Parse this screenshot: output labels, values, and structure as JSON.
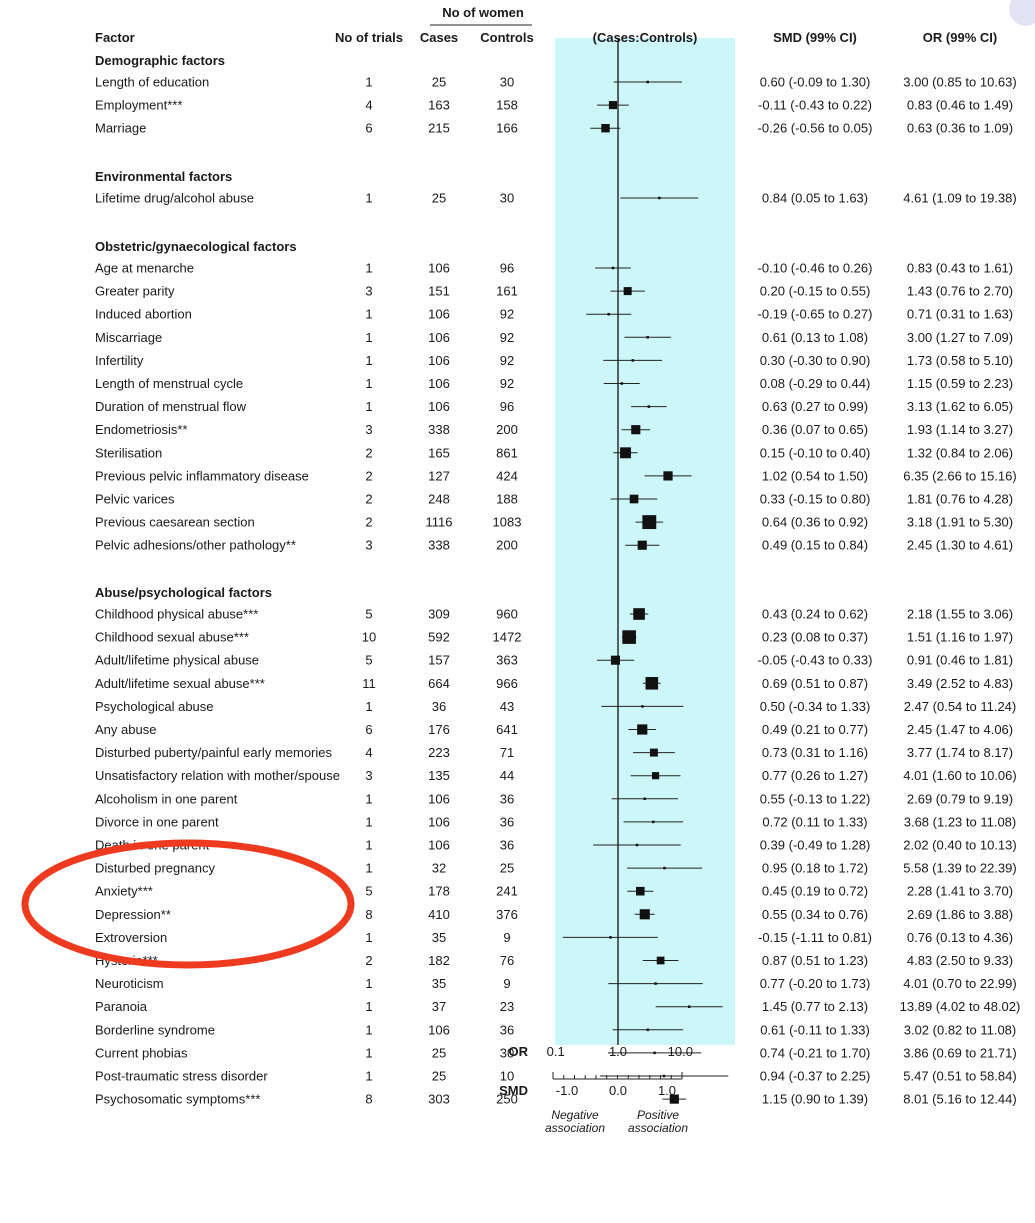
{
  "header": {
    "no_of_women": "No of women",
    "factor": "Factor",
    "no_of_trials": "No of trials",
    "cases": "Cases",
    "controls": "Controls",
    "plot_header": "(Cases:Controls)",
    "smd_ci": "SMD (99% CI)",
    "or_ci": "OR (99% CI)"
  },
  "axes": {
    "or_label": "OR",
    "or_ticks": [
      "0.1",
      "1.0",
      "10.0"
    ],
    "smd_label": "SMD",
    "smd_ticks": [
      "-1.0",
      "0.0",
      "1.0"
    ],
    "negative_line1": "Negative",
    "negative_line2": "association",
    "positive_line1": "Positive",
    "positive_line2": "association"
  },
  "colors": {
    "panel_background": "#cdf6f8",
    "annotation_ellipse": "#ee3a1e",
    "marker": "#111111"
  },
  "annotation": {
    "shape": "ellipse",
    "highlighted_rows": [
      "Disturbed pregnancy",
      "Anxiety***",
      "Depression**",
      "Extroversion"
    ]
  },
  "chart_data": {
    "type": "forest",
    "x_scale": "log (OR)",
    "xlim": [
      0.1,
      10
    ],
    "reference_line": 1.0,
    "groups": [
      {
        "title": "Demographic factors",
        "rows": [
          {
            "factor": "Length of education",
            "trials": "1",
            "cases": "25",
            "controls": "30",
            "smd": "0.60 (-0.09 to 1.30)",
            "or": "3.00 (0.85 to 10.63)",
            "or_est": 3.0,
            "or_lo": 0.85,
            "or_hi": 10.63
          },
          {
            "factor": "Employment***",
            "trials": "4",
            "cases": "163",
            "controls": "158",
            "smd": "-0.11 (-0.43 to 0.22)",
            "or": "0.83 (0.46 to 1.49)",
            "or_est": 0.83,
            "or_lo": 0.46,
            "or_hi": 1.49
          },
          {
            "factor": "Marriage",
            "trials": "6",
            "cases": "215",
            "controls": "166",
            "smd": "-0.26 (-0.56 to 0.05)",
            "or": "0.63 (0.36 to 1.09)",
            "or_est": 0.63,
            "or_lo": 0.36,
            "or_hi": 1.09
          }
        ]
      },
      {
        "title": "Environmental factors",
        "rows": [
          {
            "factor": "Lifetime drug/alcohol abuse",
            "trials": "1",
            "cases": "25",
            "controls": "30",
            "smd": "0.84 (0.05 to 1.63)",
            "or": "4.61 (1.09 to 19.38)",
            "or_est": 4.61,
            "or_lo": 1.09,
            "or_hi": 19.38
          }
        ]
      },
      {
        "title": "Obstetric/gynaecological factors",
        "rows": [
          {
            "factor": "Age at menarche",
            "trials": "1",
            "cases": "106",
            "controls": "96",
            "smd": "-0.10 (-0.46 to 0.26)",
            "or": "0.83 (0.43 to 1.61)",
            "or_est": 0.83,
            "or_lo": 0.43,
            "or_hi": 1.61
          },
          {
            "factor": "Greater parity",
            "trials": "3",
            "cases": "151",
            "controls": "161",
            "smd": "0.20 (-0.15 to 0.55)",
            "or": "1.43 (0.76 to 2.70)",
            "or_est": 1.43,
            "or_lo": 0.76,
            "or_hi": 2.7
          },
          {
            "factor": "Induced abortion",
            "trials": "1",
            "cases": "106",
            "controls": "92",
            "smd": "-0.19 (-0.65 to 0.27)",
            "or": "0.71 (0.31 to 1.63)",
            "or_est": 0.71,
            "or_lo": 0.31,
            "or_hi": 1.63
          },
          {
            "factor": "Miscarriage",
            "trials": "1",
            "cases": "106",
            "controls": "92",
            "smd": "0.61 (0.13 to 1.08)",
            "or": "3.00 (1.27 to 7.09)",
            "or_est": 3.0,
            "or_lo": 1.27,
            "or_hi": 7.09
          },
          {
            "factor": "Infertility",
            "trials": "1",
            "cases": "106",
            "controls": "92",
            "smd": "0.30 (-0.30 to 0.90)",
            "or": "1.73 (0.58 to 5.10)",
            "or_est": 1.73,
            "or_lo": 0.58,
            "or_hi": 5.1
          },
          {
            "factor": "Length of menstrual cycle",
            "trials": "1",
            "cases": "106",
            "controls": "92",
            "smd": "0.08 (-0.29 to 0.44)",
            "or": "1.15 (0.59 to 2.23)",
            "or_est": 1.15,
            "or_lo": 0.59,
            "or_hi": 2.23
          },
          {
            "factor": "Duration of menstrual flow",
            "trials": "1",
            "cases": "106",
            "controls": "96",
            "smd": "0.63 (0.27 to 0.99)",
            "or": "3.13 (1.62 to 6.05)",
            "or_est": 3.13,
            "or_lo": 1.62,
            "or_hi": 6.05
          },
          {
            "factor": "Endometriosis**",
            "trials": "3",
            "cases": "338",
            "controls": "200",
            "smd": "0.36 (0.07 to 0.65)",
            "or": "1.93 (1.14 to 3.27)",
            "or_est": 1.93,
            "or_lo": 1.14,
            "or_hi": 3.27
          },
          {
            "factor": "Sterilisation",
            "trials": "2",
            "cases": "165",
            "controls": "861",
            "smd": "0.15 (-0.10 to 0.40)",
            "or": "1.32 (0.84 to 2.06)",
            "or_est": 1.32,
            "or_lo": 0.84,
            "or_hi": 2.06
          },
          {
            "factor": "Previous pelvic inflammatory disease",
            "trials": "2",
            "cases": "127",
            "controls": "424",
            "smd": "1.02 (0.54 to 1.50)",
            "or": "6.35 (2.66 to 15.16)",
            "or_est": 6.35,
            "or_lo": 2.66,
            "or_hi": 15.16
          },
          {
            "factor": "Pelvic varices",
            "trials": "2",
            "cases": "248",
            "controls": "188",
            "smd": "0.33 (-0.15 to 0.80)",
            "or": "1.81 (0.76 to 4.28)",
            "or_est": 1.81,
            "or_lo": 0.76,
            "or_hi": 4.28
          },
          {
            "factor": "Previous caesarean section",
            "trials": "2",
            "cases": "1116",
            "controls": "1083",
            "smd": "0.64 (0.36 to 0.92)",
            "or": "3.18 (1.91 to 5.30)",
            "or_est": 3.18,
            "or_lo": 1.91,
            "or_hi": 5.3
          },
          {
            "factor": "Pelvic adhesions/other pathology**",
            "trials": "3",
            "cases": "338",
            "controls": "200",
            "smd": "0.49 (0.15 to 0.84)",
            "or": "2.45 (1.30 to 4.61)",
            "or_est": 2.45,
            "or_lo": 1.3,
            "or_hi": 4.61
          }
        ]
      },
      {
        "title": "Abuse/psychological factors",
        "rows": [
          {
            "factor": "Childhood physical abuse***",
            "trials": "5",
            "cases": "309",
            "controls": "960",
            "smd": "0.43 (0.24 to 0.62)",
            "or": "2.18 (1.55 to 3.06)",
            "or_est": 2.18,
            "or_lo": 1.55,
            "or_hi": 3.06
          },
          {
            "factor": "Childhood sexual abuse***",
            "trials": "10",
            "cases": "592",
            "controls": "1472",
            "smd": "0.23 (0.08 to 0.37)",
            "or": "1.51 (1.16 to 1.97)",
            "or_est": 1.51,
            "or_lo": 1.16,
            "or_hi": 1.97
          },
          {
            "factor": "Adult/lifetime physical abuse",
            "trials": "5",
            "cases": "157",
            "controls": "363",
            "smd": "-0.05 (-0.43 to 0.33)",
            "or": "0.91 (0.46 to 1.81)",
            "or_est": 0.91,
            "or_lo": 0.46,
            "or_hi": 1.81
          },
          {
            "factor": "Adult/lifetime sexual abuse***",
            "trials": "11",
            "cases": "664",
            "controls": "966",
            "smd": "0.69 (0.51 to 0.87)",
            "or": "3.49 (2.52 to 4.83)",
            "or_est": 3.49,
            "or_lo": 2.52,
            "or_hi": 4.83
          },
          {
            "factor": "Psychological abuse",
            "trials": "1",
            "cases": "36",
            "controls": "43",
            "smd": "0.50 (-0.34 to 1.33)",
            "or": "2.47 (0.54 to 11.24)",
            "or_est": 2.47,
            "or_lo": 0.54,
            "or_hi": 11.24
          },
          {
            "factor": "Any abuse",
            "trials": "6",
            "cases": "176",
            "controls": "641",
            "smd": "0.49 (0.21 to 0.77)",
            "or": "2.45 (1.47 to 4.06)",
            "or_est": 2.45,
            "or_lo": 1.47,
            "or_hi": 4.06
          },
          {
            "factor": "Disturbed puberty/painful early memories",
            "trials": "4",
            "cases": "223",
            "controls": "71",
            "smd": "0.73 (0.31 to 1.16)",
            "or": "3.77 (1.74 to 8.17)",
            "or_est": 3.77,
            "or_lo": 1.74,
            "or_hi": 8.17
          },
          {
            "factor": "Unsatisfactory relation with mother/spouse",
            "trials": "3",
            "cases": "135",
            "controls": "44",
            "smd": "0.77 (0.26 to 1.27)",
            "or": "4.01 (1.60 to 10.06)",
            "or_est": 4.01,
            "or_lo": 1.6,
            "or_hi": 10.06
          },
          {
            "factor": "Alcoholism in one parent",
            "trials": "1",
            "cases": "106",
            "controls": "36",
            "smd": "0.55 (-0.13 to 1.22)",
            "or": "2.69 (0.79 to 9.19)",
            "or_est": 2.69,
            "or_lo": 0.79,
            "or_hi": 9.19
          },
          {
            "factor": "Divorce in one parent",
            "trials": "1",
            "cases": "106",
            "controls": "36",
            "smd": "0.72 (0.11 to 1.33)",
            "or": "3.68 (1.23 to 11.08)",
            "or_est": 3.68,
            "or_lo": 1.23,
            "or_hi": 11.08
          },
          {
            "factor": "Death in one parent",
            "trials": "1",
            "cases": "106",
            "controls": "36",
            "smd": "0.39 (-0.49 to 1.28)",
            "or": "2.02 (0.40 to 10.13)",
            "or_est": 2.02,
            "or_lo": 0.4,
            "or_hi": 10.13
          },
          {
            "factor": "Disturbed pregnancy",
            "trials": "1",
            "cases": "32",
            "controls": "25",
            "smd": "0.95 (0.18 to 1.72)",
            "or": "5.58 (1.39 to 22.39)",
            "or_est": 5.58,
            "or_lo": 1.39,
            "or_hi": 22.39
          },
          {
            "factor": "Anxiety***",
            "trials": "5",
            "cases": "178",
            "controls": "241",
            "smd": "0.45 (0.19 to 0.72)",
            "or": "2.28 (1.41 to 3.70)",
            "or_est": 2.28,
            "or_lo": 1.41,
            "or_hi": 3.7
          },
          {
            "factor": "Depression**",
            "trials": "8",
            "cases": "410",
            "controls": "376",
            "smd": "0.55 (0.34 to 0.76)",
            "or": "2.69 (1.86 to 3.88)",
            "or_est": 2.69,
            "or_lo": 1.86,
            "or_hi": 3.88
          },
          {
            "factor": "Extroversion",
            "trials": "1",
            "cases": "35",
            "controls": "9",
            "smd": "-0.15 (-1.11 to 0.81)",
            "or": "0.76 (0.13 to 4.36)",
            "or_est": 0.76,
            "or_lo": 0.13,
            "or_hi": 4.36
          },
          {
            "factor": "Hysteria***",
            "trials": "2",
            "cases": "182",
            "controls": "76",
            "smd": "0.87 (0.51 to 1.23)",
            "or": "4.83 (2.50 to 9.33)",
            "or_est": 4.83,
            "or_lo": 2.5,
            "or_hi": 9.33
          },
          {
            "factor": "Neuroticism",
            "trials": "1",
            "cases": "35",
            "controls": "9",
            "smd": "0.77 (-0.20 to 1.73)",
            "or": "4.01 (0.70 to 22.99)",
            "or_est": 4.01,
            "or_lo": 0.7,
            "or_hi": 22.99
          },
          {
            "factor": "Paranoia",
            "trials": "1",
            "cases": "37",
            "controls": "23",
            "smd": "1.45 (0.77 to 2.13)",
            "or": "13.89 (4.02 to 48.02)",
            "or_est": 13.89,
            "or_lo": 4.02,
            "or_hi": 48.02
          },
          {
            "factor": "Borderline syndrome",
            "trials": "1",
            "cases": "106",
            "controls": "36",
            "smd": "0.61 (-0.11 to 1.33)",
            "or": "3.02 (0.82 to 11.08)",
            "or_est": 3.02,
            "or_lo": 0.82,
            "or_hi": 11.08
          },
          {
            "factor": "Current phobias",
            "trials": "1",
            "cases": "25",
            "controls": "30",
            "smd": "0.74 (-0.21 to 1.70)",
            "or": "3.86 (0.69 to 21.71)",
            "or_est": 3.86,
            "or_lo": 0.69,
            "or_hi": 21.71
          },
          {
            "factor": "Post-traumatic stress disorder",
            "trials": "1",
            "cases": "25",
            "controls": "10",
            "smd": "0.94 (-0.37 to 2.25)",
            "or": "5.47 (0.51 to 58.84)",
            "or_est": 5.47,
            "or_lo": 0.51,
            "or_hi": 58.84
          },
          {
            "factor": "Psychosomatic symptoms***",
            "trials": "8",
            "cases": "303",
            "controls": "250",
            "smd": "1.15 (0.90 to 1.39)",
            "or": "8.01 (5.16 to 12.44)",
            "or_est": 8.01,
            "or_lo": 5.16,
            "or_hi": 12.44
          }
        ]
      }
    ]
  }
}
